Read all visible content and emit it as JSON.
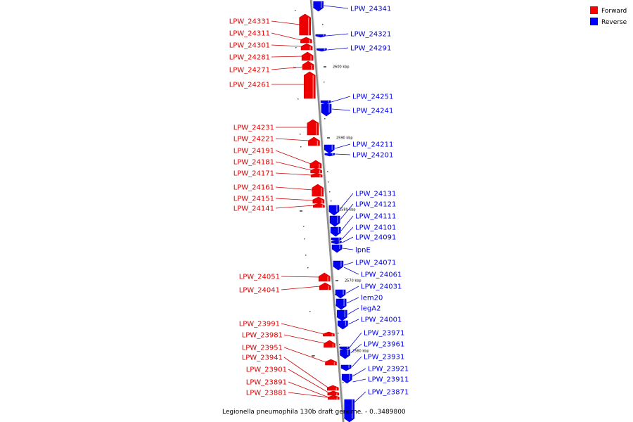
{
  "caption": "Legionella pneumophila 130b draft genome. - 0..3489800",
  "legend": [
    {
      "label": "Forward",
      "color": "#ff0000"
    },
    {
      "label": "Reverse",
      "color": "#0000ff"
    }
  ],
  "colors": {
    "forward_fill": "#ee0000",
    "forward_line": "#cc0000",
    "reverse_fill": "#0000ee",
    "reverse_line": "#0000cc",
    "axis": "#8c8c8c"
  },
  "ticks": [
    "2600 kbp",
    "2590 kbp",
    "2580 kbp",
    "2570 kbp",
    "2560 kbp"
  ],
  "forward_genes": [
    "LPW_24331",
    "LPW_24311",
    "LPW_24301",
    "LPW_24281",
    "LPW_24271",
    "LPW_24261",
    "LPW_24231",
    "LPW_24221",
    "LPW_24191",
    "LPW_24181",
    "LPW_24171",
    "LPW_24161",
    "LPW_24151",
    "LPW_24141",
    "LPW_24051",
    "LPW_24041",
    "LPW_23991",
    "LPW_23981",
    "LPW_23951",
    "LPW_23941",
    "LPW_23901",
    "LPW_23891",
    "LPW_23881"
  ],
  "reverse_genes": [
    "LPW_24341",
    "LPW_24321",
    "LPW_24291",
    "LPW_24251",
    "LPW_24241",
    "LPW_24211",
    "LPW_24201",
    "LPW_24131",
    "LPW_24121",
    "LPW_24111",
    "LPW_24101",
    "LPW_24091",
    "lpnE",
    "LPW_24071",
    "LPW_24061",
    "LPW_24031",
    "lem20",
    "legA2",
    "LPW_24001",
    "LPW_23971",
    "LPW_23961",
    "LPW_23931",
    "LPW_23921",
    "LPW_23911",
    "LPW_23871"
  ]
}
